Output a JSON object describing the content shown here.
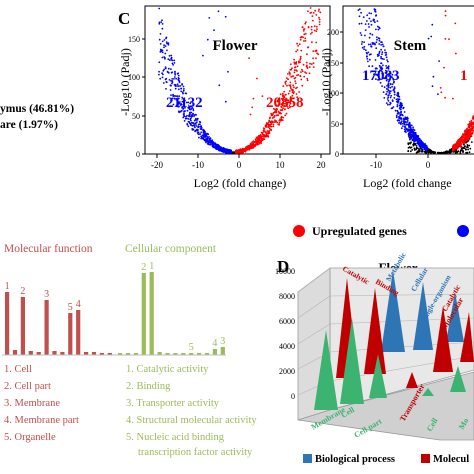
{
  "panel_c": {
    "letter": "C",
    "legend": {
      "up": {
        "label": "Upregulated genes",
        "color": "#ff0000"
      },
      "down": {
        "label": "",
        "color": "#0000ff"
      }
    },
    "plots": [
      {
        "title": "Flower",
        "xlabel": "Log2 (fold change)",
        "ylabel": "-Log10 (Padj)",
        "xticks": [
          "-20",
          "-10",
          "0",
          "10",
          "20"
        ],
        "yticks": [
          "0",
          "50",
          "100",
          "150"
        ],
        "down_count": "21132",
        "up_count": "20858"
      },
      {
        "title": "Stem",
        "xlabel": "Log2 (fold change",
        "ylabel": "-Log10 (Padj)",
        "xticks": [
          "-10",
          "0"
        ],
        "yticks": [
          "0",
          "50",
          "100",
          "150",
          "200"
        ],
        "down_count": "17083",
        "up_count": "1"
      }
    ]
  },
  "panel_b_fragment": {
    "line1": "ymus (46.81%)",
    "line2": "are (1.97%)"
  },
  "panel_go": {
    "mf_title": "Molecular function",
    "cc_title": "Cellular component",
    "mf_color": "#c0504d",
    "cc_color": "#9bbb59",
    "mf_bars": [
      {
        "label": "1",
        "value": 0.63
      },
      {
        "label": "",
        "value": 0.05
      },
      {
        "label": "2",
        "value": 0.58
      },
      {
        "label": "",
        "value": 0.04
      },
      {
        "label": "",
        "value": 0.03
      },
      {
        "label": "3",
        "value": 0.55
      },
      {
        "label": "",
        "value": 0.04
      },
      {
        "label": "",
        "value": 0.03
      },
      {
        "label": "5",
        "value": 0.42
      },
      {
        "label": "4",
        "value": 0.45
      },
      {
        "label": "",
        "value": 0.03
      },
      {
        "label": "",
        "value": 0.03
      },
      {
        "label": "",
        "value": 0.02
      },
      {
        "label": "",
        "value": 0.02
      }
    ],
    "cc_bars": [
      {
        "label": "",
        "value": 0.02
      },
      {
        "label": "",
        "value": 0.02
      },
      {
        "label": "",
        "value": 0.02
      },
      {
        "label": "2",
        "value": 0.82
      },
      {
        "label": "1",
        "value": 0.83
      },
      {
        "label": "",
        "value": 0.03
      },
      {
        "label": "",
        "value": 0.02
      },
      {
        "label": "",
        "value": 0.02
      },
      {
        "label": "",
        "value": 0.02
      },
      {
        "label": "5",
        "value": 0.02
      },
      {
        "label": "",
        "value": 0.02
      },
      {
        "label": "",
        "value": 0.02
      },
      {
        "label": "4",
        "value": 0.06
      },
      {
        "label": "3",
        "value": 0.08
      }
    ],
    "mf_legend": [
      "1. Cell",
      "2. Cell part",
      "3. Membrane",
      "4. Membrane part",
      "5. Organelle"
    ],
    "cc_legend": [
      "1. Catalytic activity",
      "2. Binding",
      "3. Transporter activity",
      "4. Structural molecular activity",
      "5. Nucleic acid binding",
      "transcription factor activity"
    ]
  },
  "panel_d": {
    "letter": "D",
    "title": "Flower",
    "yticks": [
      "0",
      "2000",
      "4000",
      "6000",
      "8000",
      "10000"
    ],
    "colors": {
      "bp": "#2e75b6",
      "cc": "#3cb371",
      "mf": "#c00000"
    },
    "legend_bp": "Biological process",
    "legend_mf": "Molecul",
    "top_labels": [
      "Catalytic",
      "Binding",
      "Metabolic",
      "Cellular",
      "Single-organism",
      "Catalytic"
    ],
    "bottom_labels": [
      "Membrane",
      "Cell",
      "Cell part",
      "Transporter",
      "Cell",
      "Mo"
    ],
    "right_labels": [
      "Molecular"
    ]
  },
  "chart_data": [
    {
      "type": "scatter",
      "title": "Flower",
      "xlabel": "Log2 (fold change)",
      "ylabel": "-Log10 (Padj)",
      "xlim": [
        -22,
        24
      ],
      "ylim": [
        0,
        160
      ],
      "series": [
        {
          "name": "",
          "count": "21132",
          "color": "#0000ff"
        },
        {
          "name": "",
          "count": "20858",
          "color": "#ff0000"
        }
      ]
    },
    {
      "type": "scatter",
      "title": "Stem",
      "xlabel": "Log2 (fold change",
      "ylabel": "-Log10 (Padj)",
      "xlim": [
        -18,
        8
      ],
      "ylim": [
        0,
        220
      ],
      "series": [
        {
          "name": "",
          "count": "17083",
          "color": "#0000ff"
        },
        {
          "name": "",
          "count": "1",
          "color": "#ff0000"
        }
      ]
    }
  ]
}
